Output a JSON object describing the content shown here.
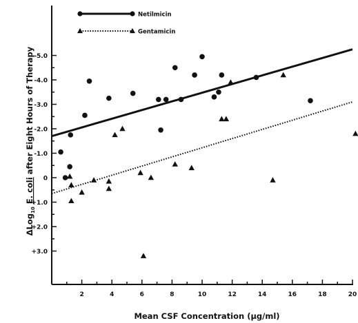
{
  "chart_data": {
    "type": "scatter",
    "xlabel": "Mean CSF Concentration (µg/ml)",
    "ylabel_prefix": "Log",
    "ylabel_sub": "10",
    "ylabel_organism": "E. coli",
    "ylabel_suffix": "after Eight Hours of Therapy",
    "xlim": [
      0,
      20
    ],
    "ylim": [
      -5.5,
      3.3
    ],
    "x_ticks": [
      2,
      4,
      6,
      8,
      10,
      12,
      14,
      16,
      18,
      20
    ],
    "x_tick_labels": [
      "2",
      "4",
      "6",
      "8",
      "10",
      "12",
      "14",
      "16",
      "18",
      "20"
    ],
    "y_ticks": [
      -5,
      -4,
      -3,
      -2,
      -1,
      0,
      1,
      2,
      3
    ],
    "y_tick_labels": [
      "-5.0",
      "-4.0",
      "-3.0",
      "-2.0",
      "-1.0",
      "0",
      "+1.0",
      "+2.0",
      "+3.0"
    ],
    "legend_position": "top-left",
    "series": [
      {
        "name": "Netilmicin",
        "marker": "circle",
        "line_style": "solid",
        "line": {
          "x": [
            0,
            20
          ],
          "y": [
            -1.7,
            -5.25
          ]
        },
        "points": [
          [
            0.6,
            -1.05
          ],
          [
            0.9,
            0.0
          ],
          [
            1.2,
            -0.45
          ],
          [
            1.25,
            -1.75
          ],
          [
            2.2,
            -2.55
          ],
          [
            2.5,
            -3.95
          ],
          [
            3.8,
            -3.25
          ],
          [
            5.4,
            -3.45
          ],
          [
            7.1,
            -3.2
          ],
          [
            7.25,
            -1.95
          ],
          [
            7.6,
            -3.2
          ],
          [
            8.2,
            -4.5
          ],
          [
            8.6,
            -3.2
          ],
          [
            9.5,
            -4.2
          ],
          [
            10.0,
            -4.95
          ],
          [
            10.8,
            -3.3
          ],
          [
            11.1,
            -3.5
          ],
          [
            11.3,
            -4.2
          ],
          [
            13.6,
            -4.1
          ],
          [
            17.2,
            -3.15
          ]
        ]
      },
      {
        "name": "Gentamicin",
        "marker": "triangle",
        "line_style": "dotted",
        "line": {
          "x": [
            0,
            20
          ],
          "y": [
            0.65,
            -3.1
          ]
        },
        "points": [
          [
            1.2,
            -0.05
          ],
          [
            1.3,
            0.95
          ],
          [
            1.3,
            0.3
          ],
          [
            2.0,
            0.6
          ],
          [
            2.8,
            0.1
          ],
          [
            3.8,
            0.15
          ],
          [
            3.8,
            0.45
          ],
          [
            4.2,
            -1.75
          ],
          [
            4.7,
            -2.0
          ],
          [
            5.9,
            -0.2
          ],
          [
            6.1,
            3.2
          ],
          [
            6.6,
            0.0
          ],
          [
            8.2,
            -0.55
          ],
          [
            9.3,
            -0.4
          ],
          [
            11.3,
            -2.4
          ],
          [
            11.6,
            -2.4
          ],
          [
            11.9,
            -3.9
          ],
          [
            14.7,
            0.1
          ],
          [
            15.4,
            -4.2
          ],
          [
            20.2,
            -1.8
          ]
        ]
      }
    ]
  }
}
